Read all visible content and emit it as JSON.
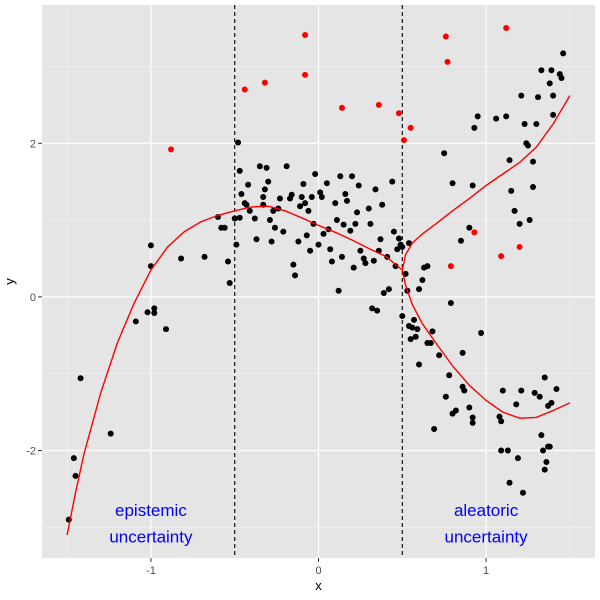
{
  "chart_data": {
    "type": "scatter",
    "title": "",
    "xlabel": "x",
    "ylabel": "y",
    "xlim": [
      -1.65,
      1.65
    ],
    "ylim": [
      -3.4,
      3.8
    ],
    "x_ticks": [
      -1,
      0,
      1
    ],
    "y_ticks": [
      -2,
      0,
      2
    ],
    "x_tick_labels": [
      "-1",
      "0",
      "1"
    ],
    "y_tick_labels": [
      "-2",
      "0",
      "2"
    ],
    "grid": true,
    "legend": "none",
    "colors": {
      "panel": "#e5e5e5",
      "grid_major": "#ffffff",
      "points_black": "#000000",
      "points_red": "#ff0000",
      "curve": "#ff0000",
      "annotation": "#0000ff"
    },
    "vlines": [
      -0.5,
      0.5
    ],
    "annotations": [
      {
        "lines": [
          "epistemic",
          "uncertainty"
        ],
        "x": -1.0,
        "y": [
          -2.85,
          -3.2
        ]
      },
      {
        "lines": [
          "aleatoric",
          "uncertainty"
        ],
        "x": 1.0,
        "y": [
          -2.85,
          -3.2
        ]
      }
    ],
    "series": [
      {
        "color": "black",
        "points": [
          [
            -1.49,
            -2.9
          ],
          [
            -1.46,
            -2.1
          ],
          [
            -1.45,
            -2.33
          ],
          [
            -1.42,
            -1.06
          ],
          [
            -1.24,
            -1.78
          ],
          [
            -1.09,
            -0.32
          ],
          [
            -1.02,
            -0.2
          ],
          [
            -1.0,
            0.67
          ],
          [
            -1.0,
            0.4
          ],
          [
            -0.98,
            -0.15
          ],
          [
            -0.98,
            -0.21
          ],
          [
            -0.91,
            -0.42
          ],
          [
            -0.82,
            0.5
          ],
          [
            -0.68,
            0.52
          ],
          [
            -0.6,
            1.04
          ],
          [
            -0.58,
            0.9
          ],
          [
            -0.56,
            0.9
          ],
          [
            -0.54,
            0.46
          ],
          [
            -0.53,
            0.18
          ],
          [
            -0.5,
            1.02
          ],
          [
            -0.49,
            0.68
          ],
          [
            -0.47,
            1.03
          ],
          [
            -0.48,
            2.01
          ],
          [
            -0.47,
            1.64
          ],
          [
            -0.46,
            1.34
          ],
          [
            -0.44,
            1.22
          ],
          [
            -0.43,
            1.2
          ],
          [
            -0.42,
            1.46
          ],
          [
            -0.41,
            1.12
          ],
          [
            -0.38,
            1.02
          ],
          [
            -0.37,
            0.75
          ],
          [
            -0.35,
            1.7
          ],
          [
            -0.33,
            1.3
          ],
          [
            -0.33,
            1.2
          ],
          [
            -0.32,
            1.4
          ],
          [
            -0.31,
            1.68
          ],
          [
            -0.3,
            1.5
          ],
          [
            -0.29,
            1.0
          ],
          [
            -0.28,
            0.72
          ],
          [
            -0.27,
            1.12
          ],
          [
            -0.26,
            0.9
          ],
          [
            -0.24,
            1.15
          ],
          [
            -0.23,
            1.28
          ],
          [
            -0.21,
            0.85
          ],
          [
            -0.19,
            1.7
          ],
          [
            -0.17,
            1.28
          ],
          [
            -0.16,
            1.33
          ],
          [
            -0.15,
            0.42
          ],
          [
            -0.14,
            0.28
          ],
          [
            -0.12,
            0.72
          ],
          [
            -0.11,
            1.18
          ],
          [
            -0.1,
            1.3
          ],
          [
            -0.09,
            1.47
          ],
          [
            -0.08,
            1.22
          ],
          [
            -0.07,
            0.8
          ],
          [
            -0.06,
            1.12
          ],
          [
            -0.05,
            0.6
          ],
          [
            -0.04,
            1.3
          ],
          [
            -0.03,
            0.95
          ],
          [
            -0.02,
            1.6
          ],
          [
            0.0,
            0.68
          ],
          [
            0.01,
            1.36
          ],
          [
            0.02,
            1.3
          ],
          [
            0.03,
            0.82
          ],
          [
            0.05,
            1.48
          ],
          [
            0.06,
            0.88
          ],
          [
            0.07,
            0.62
          ],
          [
            0.08,
            0.46
          ],
          [
            0.1,
            1.22
          ],
          [
            0.11,
            1.0
          ],
          [
            0.12,
            0.08
          ],
          [
            0.13,
            1.57
          ],
          [
            0.14,
            0.52
          ],
          [
            0.15,
            0.94
          ],
          [
            0.16,
            1.34
          ],
          [
            0.17,
            1.25
          ],
          [
            0.19,
            0.86
          ],
          [
            0.2,
            1.57
          ],
          [
            0.21,
            0.38
          ],
          [
            0.22,
            0.95
          ],
          [
            0.23,
            1.1
          ],
          [
            0.24,
            1.45
          ],
          [
            0.25,
            0.6
          ],
          [
            0.27,
            0.5
          ],
          [
            0.28,
            0.44
          ],
          [
            0.3,
            1.15
          ],
          [
            0.31,
            0.95
          ],
          [
            0.32,
            -0.15
          ],
          [
            0.33,
            0.47
          ],
          [
            0.34,
            1.4
          ],
          [
            0.35,
            -0.18
          ],
          [
            0.36,
            0.6
          ],
          [
            0.37,
            0.75
          ],
          [
            0.38,
            1.2
          ],
          [
            0.39,
            0.05
          ],
          [
            0.41,
            0.52
          ],
          [
            0.42,
            0.1
          ],
          [
            0.44,
            1.5
          ],
          [
            0.45,
            0.85
          ],
          [
            0.46,
            0.4
          ],
          [
            0.47,
            0.62
          ],
          [
            0.48,
            0.76
          ],
          [
            0.49,
            0.68
          ],
          [
            0.5,
            0.65
          ],
          [
            0.5,
            -0.25
          ],
          [
            0.52,
            0.3
          ],
          [
            0.53,
            0.08
          ],
          [
            0.54,
            0.7
          ],
          [
            0.54,
            -0.38
          ],
          [
            0.55,
            -0.55
          ],
          [
            0.56,
            -0.4
          ],
          [
            0.57,
            -0.3
          ],
          [
            0.58,
            -0.52
          ],
          [
            0.59,
            -0.42
          ],
          [
            0.6,
            0.1
          ],
          [
            0.6,
            -0.88
          ],
          [
            0.62,
            0.22
          ],
          [
            0.63,
            0.38
          ],
          [
            0.65,
            0.4
          ],
          [
            0.65,
            -0.6
          ],
          [
            0.67,
            -0.6
          ],
          [
            0.68,
            -0.45
          ],
          [
            0.69,
            -1.72
          ],
          [
            0.72,
            -0.76
          ],
          [
            0.75,
            1.87
          ],
          [
            0.76,
            -1.3
          ],
          [
            0.78,
            -1.02
          ],
          [
            0.79,
            -0.08
          ],
          [
            0.8,
            1.48
          ],
          [
            0.8,
            -1.52
          ],
          [
            0.82,
            -1.48
          ],
          [
            0.85,
            0.73
          ],
          [
            0.86,
            -0.73
          ],
          [
            0.86,
            -1.17
          ],
          [
            0.87,
            -1.22
          ],
          [
            0.9,
            0.9
          ],
          [
            0.9,
            -1.44
          ],
          [
            0.92,
            -1.57
          ],
          [
            0.92,
            -1.64
          ],
          [
            0.92,
            1.45
          ],
          [
            0.93,
            2.2
          ],
          [
            0.95,
            2.35
          ],
          [
            0.97,
            -0.47
          ],
          [
            1.06,
            2.32
          ],
          [
            1.08,
            -1.56
          ],
          [
            1.09,
            -1.62
          ],
          [
            1.09,
            -2.0
          ],
          [
            1.1,
            -1.22
          ],
          [
            1.12,
            2.35
          ],
          [
            1.13,
            -2.0
          ],
          [
            1.14,
            -2.42
          ],
          [
            1.14,
            1.78
          ],
          [
            1.15,
            1.38
          ],
          [
            1.17,
            1.12
          ],
          [
            1.18,
            -1.4
          ],
          [
            1.19,
            -2.1
          ],
          [
            1.2,
            0.95
          ],
          [
            1.21,
            2.62
          ],
          [
            1.21,
            -1.22
          ],
          [
            1.22,
            -2.55
          ],
          [
            1.23,
            2.25
          ],
          [
            1.24,
            2.0
          ],
          [
            1.25,
            1.97
          ],
          [
            1.26,
            1.0
          ],
          [
            1.28,
            1.76
          ],
          [
            1.28,
            1.43
          ],
          [
            1.29,
            -1.25
          ],
          [
            1.3,
            2.25
          ],
          [
            1.31,
            2.6
          ],
          [
            1.32,
            -1.3
          ],
          [
            1.33,
            -1.8
          ],
          [
            1.33,
            2.95
          ],
          [
            1.34,
            -2.0
          ],
          [
            1.35,
            -2.25
          ],
          [
            1.35,
            -1.05
          ],
          [
            1.36,
            -2.15
          ],
          [
            1.37,
            -1.95
          ],
          [
            1.37,
            -1.42
          ],
          [
            1.38,
            2.78
          ],
          [
            1.38,
            -1.95
          ],
          [
            1.39,
            2.95
          ],
          [
            1.39,
            -1.38
          ],
          [
            1.4,
            2.37
          ],
          [
            1.4,
            2.62
          ],
          [
            1.42,
            -1.2
          ],
          [
            1.44,
            2.9
          ],
          [
            1.45,
            2.85
          ],
          [
            1.46,
            3.17
          ]
        ]
      },
      {
        "color": "red",
        "points": [
          [
            -0.88,
            1.92
          ],
          [
            -0.44,
            2.7
          ],
          [
            -0.32,
            2.79
          ],
          [
            -0.08,
            3.41
          ],
          [
            -0.08,
            2.89
          ],
          [
            0.14,
            2.46
          ],
          [
            0.36,
            2.5
          ],
          [
            0.48,
            2.39
          ],
          [
            0.51,
            2.04
          ],
          [
            0.55,
            2.2
          ],
          [
            0.76,
            3.39
          ],
          [
            0.77,
            3.06
          ],
          [
            0.79,
            0.4
          ],
          [
            0.93,
            0.84
          ],
          [
            1.09,
            0.53
          ],
          [
            1.12,
            3.5
          ],
          [
            1.2,
            0.65
          ]
        ]
      }
    ],
    "curves": [
      {
        "color": "red",
        "points": [
          [
            -1.5,
            -3.1
          ],
          [
            -1.45,
            -2.55
          ],
          [
            -1.4,
            -2.05
          ],
          [
            -1.3,
            -1.25
          ],
          [
            -1.2,
            -0.6
          ],
          [
            -1.1,
            -0.08
          ],
          [
            -1.0,
            0.35
          ],
          [
            -0.9,
            0.65
          ],
          [
            -0.8,
            0.85
          ],
          [
            -0.7,
            0.98
          ],
          [
            -0.6,
            1.06
          ],
          [
            -0.5,
            1.12
          ],
          [
            -0.4,
            1.17
          ],
          [
            -0.3,
            1.18
          ],
          [
            -0.2,
            1.12
          ],
          [
            -0.1,
            1.03
          ],
          [
            0.0,
            0.93
          ],
          [
            0.1,
            0.84
          ],
          [
            0.2,
            0.74
          ],
          [
            0.3,
            0.63
          ],
          [
            0.4,
            0.53
          ],
          [
            0.5,
            0.35
          ]
        ]
      },
      {
        "color": "red",
        "points": [
          [
            0.5,
            0.35
          ],
          [
            0.52,
            0.55
          ],
          [
            0.56,
            0.7
          ],
          [
            0.62,
            0.82
          ],
          [
            0.7,
            0.95
          ],
          [
            0.8,
            1.12
          ],
          [
            0.9,
            1.28
          ],
          [
            1.0,
            1.45
          ],
          [
            1.1,
            1.6
          ],
          [
            1.2,
            1.75
          ],
          [
            1.3,
            1.95
          ],
          [
            1.4,
            2.25
          ],
          [
            1.5,
            2.62
          ]
        ]
      },
      {
        "color": "red",
        "points": [
          [
            0.5,
            0.35
          ],
          [
            0.52,
            0.15
          ],
          [
            0.56,
            -0.1
          ],
          [
            0.62,
            -0.35
          ],
          [
            0.7,
            -0.6
          ],
          [
            0.8,
            -0.9
          ],
          [
            0.9,
            -1.15
          ],
          [
            1.0,
            -1.35
          ],
          [
            1.1,
            -1.5
          ],
          [
            1.2,
            -1.58
          ],
          [
            1.3,
            -1.57
          ],
          [
            1.4,
            -1.48
          ],
          [
            1.5,
            -1.38
          ]
        ]
      }
    ]
  }
}
